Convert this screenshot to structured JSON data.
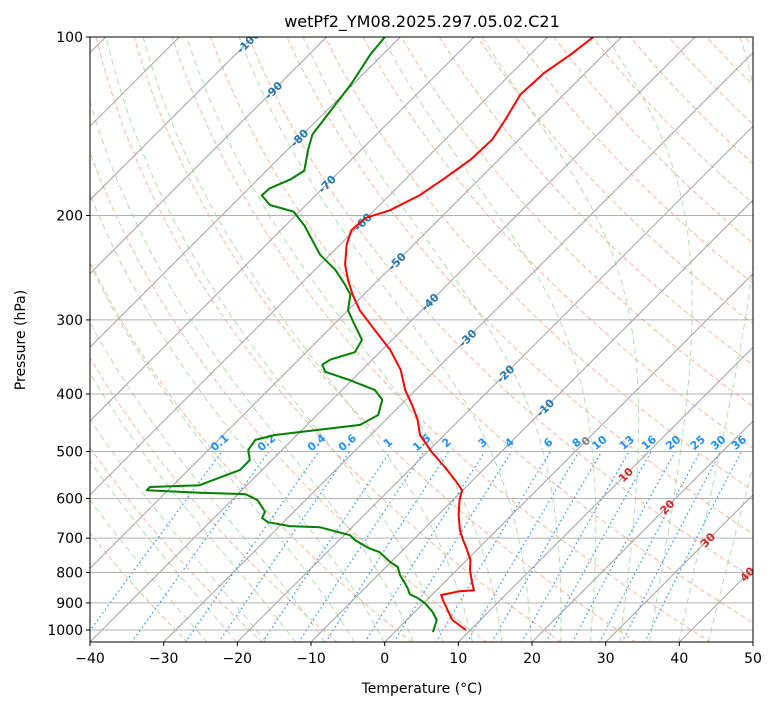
{
  "chart_data": {
    "type": "line",
    "subtype": "skew-t log-p",
    "title": "wetPf2_YM08.2025.297.05.02.C21",
    "xlabel": "Temperature (°C)",
    "ylabel": "Pressure (hPa)",
    "xlim": [
      -40,
      50
    ],
    "ylim": [
      1050,
      100
    ],
    "x_ticks": [
      "−40",
      "−30",
      "−20",
      "−10",
      "0",
      "10",
      "20",
      "30",
      "40",
      "50"
    ],
    "x_tick_values": [
      -40,
      -30,
      -20,
      -10,
      0,
      10,
      20,
      30,
      40,
      50
    ],
    "y_ticks": [
      "100",
      "200",
      "300",
      "400",
      "500",
      "600",
      "700",
      "800",
      "900",
      "1000"
    ],
    "y_tick_values": [
      100,
      200,
      300,
      400,
      500,
      600,
      700,
      800,
      900,
      1000
    ],
    "grid": true,
    "isotherm_labels": [
      {
        "value": -100,
        "text": "-100",
        "color": "#1f77b4"
      },
      {
        "value": -90,
        "text": "-90",
        "color": "#1f77b4"
      },
      {
        "value": -80,
        "text": "-80",
        "color": "#1f77b4"
      },
      {
        "value": -70,
        "text": "-70",
        "color": "#1f77b4"
      },
      {
        "value": -60,
        "text": "-60",
        "color": "#1f77b4"
      },
      {
        "value": -50,
        "text": "-50",
        "color": "#1f77b4"
      },
      {
        "value": -40,
        "text": "-40",
        "color": "#1f77b4"
      },
      {
        "value": -30,
        "text": "-30",
        "color": "#1f77b4"
      },
      {
        "value": -20,
        "text": "-20",
        "color": "#1f77b4"
      },
      {
        "value": -10,
        "text": "-10",
        "color": "#1f77b4"
      },
      {
        "value": 0,
        "text": "0",
        "color": "#808080"
      },
      {
        "value": 10,
        "text": "10",
        "color": "#d62728"
      },
      {
        "value": 20,
        "text": "20",
        "color": "#d62728"
      },
      {
        "value": 30,
        "text": "30",
        "color": "#d62728"
      },
      {
        "value": 40,
        "text": "40",
        "color": "#d62728"
      }
    ],
    "mixing_ratios": [
      {
        "value": 0.1,
        "text": "0.1"
      },
      {
        "value": 0.2,
        "text": "0.2"
      },
      {
        "value": 0.4,
        "text": "0.4"
      },
      {
        "value": 0.6,
        "text": "0.6"
      },
      {
        "value": 1,
        "text": "1"
      },
      {
        "value": 1.5,
        "text": "1.5"
      },
      {
        "value": 2,
        "text": "2"
      },
      {
        "value": 3,
        "text": "3"
      },
      {
        "value": 4,
        "text": "4"
      },
      {
        "value": 6,
        "text": "6"
      },
      {
        "value": 8,
        "text": "8"
      },
      {
        "value": 10,
        "text": "10"
      },
      {
        "value": 13,
        "text": "13"
      },
      {
        "value": 16,
        "text": "16"
      },
      {
        "value": 20,
        "text": "20"
      },
      {
        "value": 25,
        "text": "25"
      },
      {
        "value": 30,
        "text": "30"
      },
      {
        "value": 36,
        "text": "36"
      }
    ],
    "series": [
      {
        "name": "Temperature",
        "color": "#ff0000",
        "pressure": [
          1000,
          962,
          890,
          873,
          860,
          857,
          830,
          792,
          762,
          727,
          705,
          678,
          640,
          604,
          581,
          559,
          531,
          501,
          469,
          442,
          417,
          394,
          364,
          337,
          312,
          289,
          272,
          257,
          242,
          224,
          212,
          202,
          196,
          185,
          173,
          161,
          149,
          138,
          125,
          115,
          107,
          100
        ],
        "values": [
          9.4,
          6.2,
          2.2,
          1.3,
          3.3,
          5.1,
          3.7,
          1.8,
          0.5,
          -1.7,
          -3.2,
          -5.0,
          -7.2,
          -9.1,
          -10.1,
          -12.4,
          -15.6,
          -19.4,
          -23.3,
          -25.7,
          -28.5,
          -31.4,
          -34.8,
          -38.9,
          -43.7,
          -48.4,
          -51.5,
          -54.1,
          -56.6,
          -59.1,
          -60.4,
          -60.2,
          -57.9,
          -55.9,
          -54.8,
          -53.8,
          -53.6,
          -54.5,
          -55.9,
          -55.6,
          -54.5,
          -53.8
        ]
      },
      {
        "name": "Dewpoint",
        "color": "#008000",
        "pressure": [
          1008,
          962,
          932,
          901,
          883,
          870,
          850,
          833,
          808,
          783,
          768,
          739,
          727,
          705,
          692,
          671,
          668,
          658,
          647,
          632,
          604,
          590,
          587,
          581,
          574,
          570,
          537,
          517,
          497,
          478,
          469,
          451,
          434,
          409,
          394,
          379,
          367,
          357,
          350,
          340,
          324,
          306,
          289,
          272,
          262,
          247,
          233,
          220,
          208,
          197,
          192,
          185,
          180,
          174,
          168,
          155,
          146,
          134,
          120,
          107,
          100
        ],
        "values": [
          5.2,
          4.1,
          2.4,
          0.2,
          -1.5,
          -3.1,
          -4.2,
          -5.3,
          -7.0,
          -8.4,
          -10.1,
          -12.9,
          -15.0,
          -17.9,
          -19.2,
          -24.4,
          -28.6,
          -32.1,
          -33.5,
          -33.9,
          -36.5,
          -39.0,
          -45.3,
          -52.9,
          -52.9,
          -46.4,
          -43.0,
          -43.0,
          -44.6,
          -45.0,
          -43.0,
          -32.8,
          -31.7,
          -33.2,
          -35.5,
          -40.3,
          -44.75,
          -46.1,
          -45.7,
          -43.4,
          -44.1,
          -47.1,
          -50.0,
          -51.8,
          -53.8,
          -57.2,
          -61.3,
          -64.4,
          -67.4,
          -70.8,
          -74.9,
          -77.3,
          -77.2,
          -75.6,
          -74.9,
          -77.2,
          -78.7,
          -79.4,
          -80.3,
          -81.7,
          -82.1
        ]
      }
    ],
    "colors": {
      "isotherm": "#a0a0a0",
      "dry_adiabat": "#f4a582",
      "moist_adiabat": "#9fd39a",
      "mixing_ratio": "#1e90ff"
    }
  }
}
